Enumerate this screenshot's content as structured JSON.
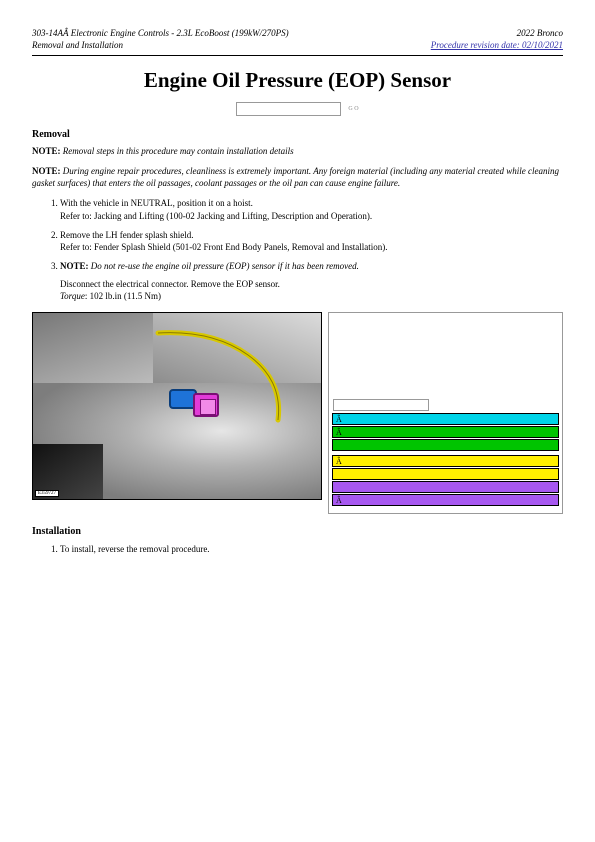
{
  "header": {
    "left_line1": "303-14AÂ Electronic Engine Controls - 2.3L EcoBoost (199kW/270PS)",
    "left_line2": "Removal and Installation",
    "right_line1": "2022 Bronco",
    "revision_link": "Procedure revision date: 02/10/2021"
  },
  "title": "Engine Oil Pressure (EOP) Sensor",
  "search": {
    "placeholder": "",
    "go": "G O"
  },
  "sections": {
    "removal": "Removal",
    "installation": "Installation"
  },
  "notes": {
    "note_label": "NOTE:",
    "note1": "Removal steps in this procedure may contain installation details",
    "note2": "During engine repair procedures, cleanliness is extremely important. Any foreign material (including any material created while cleaning gasket surfaces) that enters the oil passages, coolant passages or the oil pan can cause engine failure."
  },
  "steps_removal": [
    {
      "line1": "With the vehicle in NEUTRAL, position it on a hoist.",
      "line2": "Refer to: Jacking and Lifting (100-02 Jacking and Lifting, Description and Operation)."
    },
    {
      "line1": "Remove the LH fender splash shield.",
      "line2": "Refer to: Fender Splash Shield (501-02 Front End Body Panels, Removal and Installation)."
    },
    {
      "note_label": "NOTE:",
      "note": "Do not re-use the engine oil pressure (EOP) sensor if it has been removed.",
      "line1": "Disconnect the electrical connector. Remove the EOP sensor.",
      "torque_label": "Torque",
      "torque_value": ": 102 lb.in (11.5 Nm)"
    }
  ],
  "figure": {
    "id": "E359727"
  },
  "legend": {
    "input_placeholder": "",
    "rows": [
      {
        "marker": "Â",
        "color": "#00d4e8"
      },
      {
        "marker": "Â",
        "color": "#00c400"
      },
      {
        "marker": "",
        "color": "#00c400",
        "gap_after": true
      },
      {
        "marker": "Â",
        "color": "#fff000"
      },
      {
        "marker": "",
        "color": "#fff000"
      },
      {
        "marker": "",
        "color": "#a758f0"
      },
      {
        "marker": "Â",
        "color": "#a758f0"
      }
    ]
  },
  "steps_installation": [
    {
      "line1": "To install, reverse the removal procedure."
    }
  ],
  "colors": {
    "wire": "#d8c800",
    "connector_blue": "#1e73d8",
    "connector_pink": "#e23bd8"
  }
}
